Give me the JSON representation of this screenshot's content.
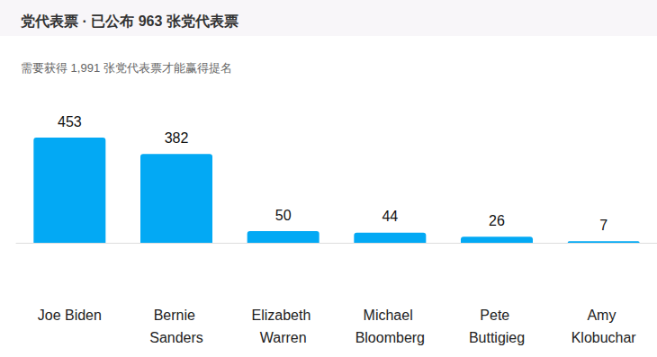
{
  "chart_data": {
    "type": "bar",
    "title": "党代表票 · 已公布 963 张党代表票",
    "subtitle": "需要获得 1,991 张党代表票才能赢得提名",
    "categories": [
      "Joe Biden",
      "Bernie Sanders",
      "Elizabeth Warren",
      "Michael Bloomberg",
      "Pete Buttigieg",
      "Amy Klobuchar"
    ],
    "values": [
      453,
      382,
      50,
      44,
      26,
      7
    ],
    "color": "#03a9f4",
    "ylim": [
      0,
      453
    ],
    "grid": false,
    "data_labels": true,
    "tick_labels": "x"
  }
}
